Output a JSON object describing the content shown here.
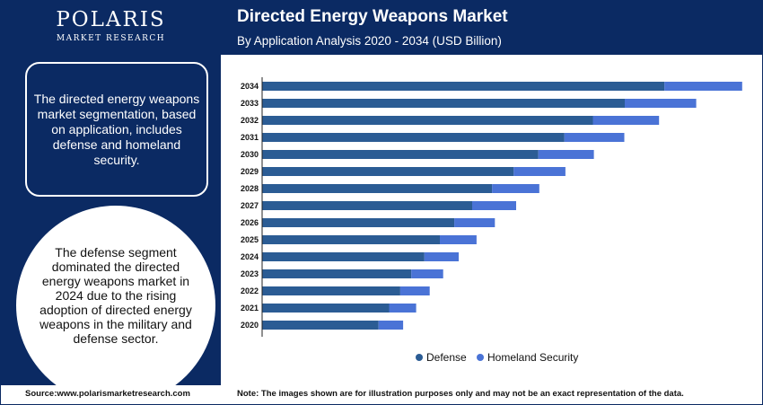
{
  "brand": {
    "name": "POLARIS",
    "tagline": "MARKET RESEARCH"
  },
  "header": {
    "title": "Directed Energy Weapons Market",
    "subtitle": "By Application Analysis 2020 - 2034 (USD Billion)"
  },
  "side_panel": {
    "info_text": "The directed energy weapons market segmentation, based on application, includes defense and homeland security.",
    "highlight_text": "The defense segment dominated the directed energy weapons market in 2024 due to the rising adoption of directed energy weapons in the military and defense sector."
  },
  "footer": {
    "source": "Source:www.polarismarketresearch.com",
    "note": "Note: The images shown are for illustration purposes only and may not be an exact representation of the data."
  },
  "colors": {
    "navy": "#0b2a63",
    "defense": "#2b5c94",
    "homeland": "#4a73d6"
  },
  "chart_data": {
    "type": "bar",
    "orientation": "horizontal",
    "stacked": true,
    "categories": [
      "2034",
      "2033",
      "2032",
      "2031",
      "2030",
      "2029",
      "2028",
      "2027",
      "2026",
      "2025",
      "2024",
      "2023",
      "2022",
      "2021",
      "2020"
    ],
    "xlim": [
      0,
      100
    ],
    "grid": false,
    "legend_position": "bottom",
    "series": [
      {
        "name": "Defense",
        "color": "#2b5c94",
        "values": [
          83.3,
          75.1,
          68.5,
          62.6,
          57.2,
          52.1,
          47.6,
          43.5,
          39.8,
          36.8,
          33.6,
          30.9,
          28.6,
          26.3,
          24.1
        ]
      },
      {
        "name": "Homeland Security",
        "color": "#4a73d6",
        "values": [
          16.1,
          14.8,
          13.7,
          12.4,
          11.5,
          10.7,
          9.8,
          9.1,
          8.4,
          7.6,
          7.1,
          6.6,
          6.1,
          5.6,
          5.1
        ]
      }
    ]
  }
}
